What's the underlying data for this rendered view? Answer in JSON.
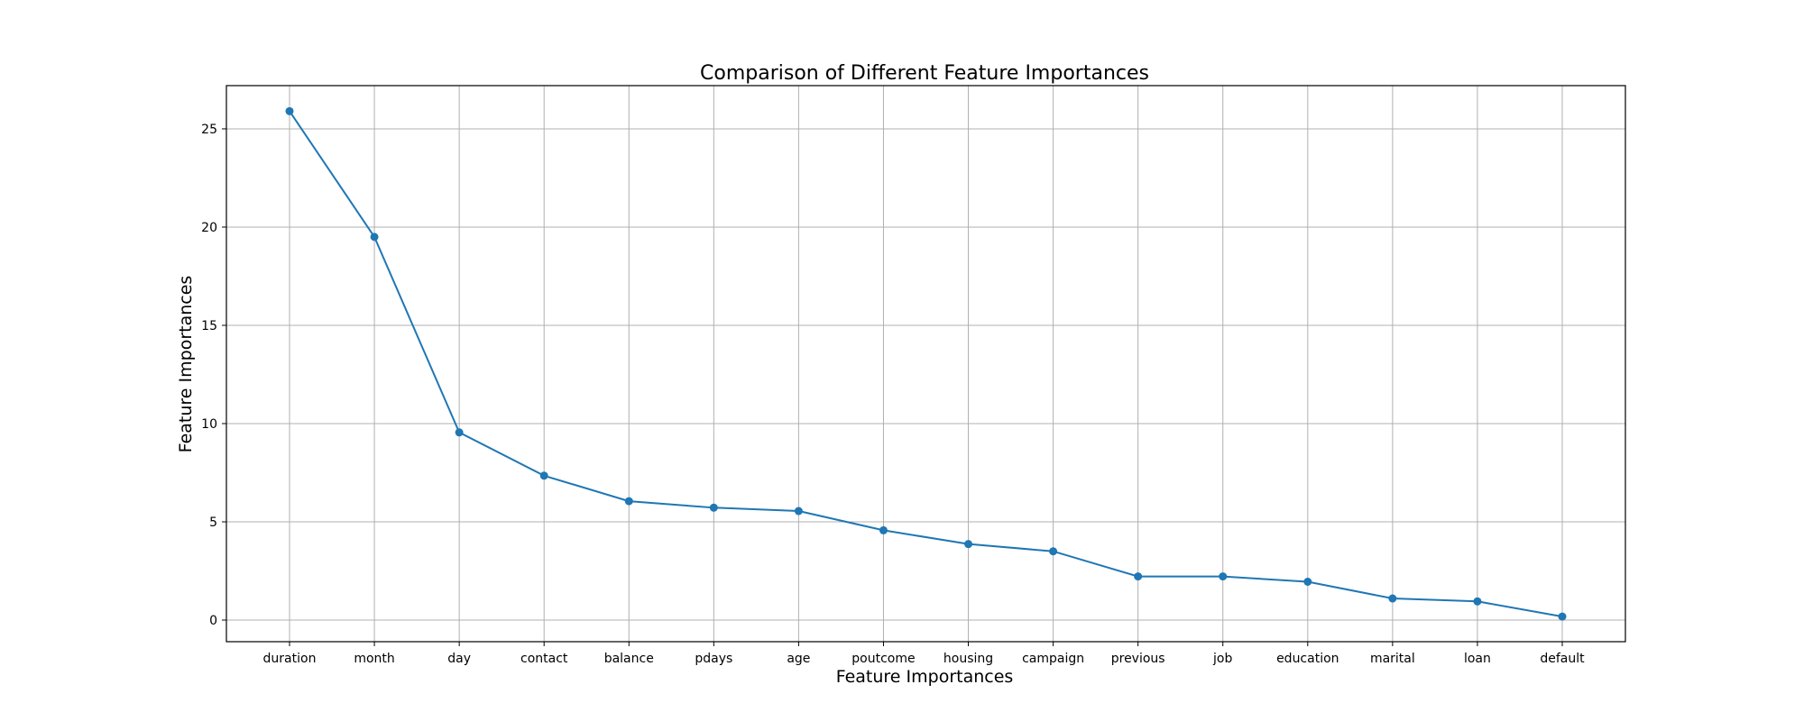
{
  "chart_data": {
    "type": "line",
    "title": "Comparison of Different Feature Importances",
    "xlabel": "Feature Importances",
    "ylabel": "Feature Importances",
    "categories": [
      "duration",
      "month",
      "day",
      "contact",
      "balance",
      "pdays",
      "age",
      "poutcome",
      "housing",
      "campaign",
      "previous",
      "job",
      "education",
      "marital",
      "loan",
      "default"
    ],
    "series": [
      {
        "values": [
          25.9,
          19.5,
          9.55,
          7.35,
          6.05,
          5.72,
          5.55,
          4.57,
          3.87,
          3.5,
          2.22,
          2.22,
          1.95,
          1.1,
          0.95,
          0.18
        ]
      }
    ],
    "ylim": [
      -1.1,
      27.2
    ],
    "yticks": [
      0,
      5,
      10,
      15,
      20,
      25
    ],
    "grid": true,
    "line_color": "#1f77b4"
  }
}
